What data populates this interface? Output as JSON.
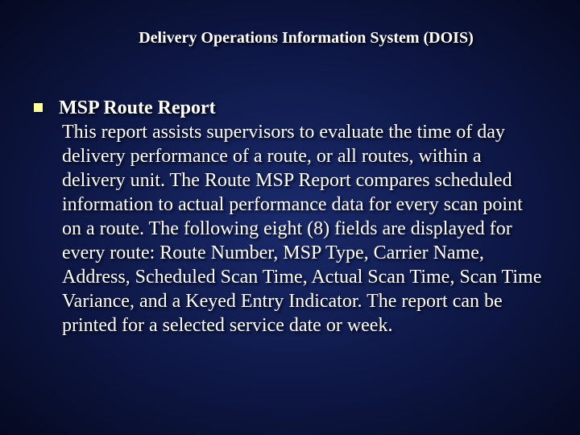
{
  "slide": {
    "title": "Delivery Operations Information System (DOIS)",
    "bullet_heading": "MSP Route Report",
    "bullet_body": "This report assists supervisors to evaluate the time of day delivery performance of a route, or all routes, within a delivery unit.  The Route MSP Report compares scheduled information to actual performance data for every scan point on a route.  The following eight (8) fields are displayed for every route: Route Number, MSP Type, Carrier Name, Address, Scheduled Scan Time, Actual Scan Time, Scan Time Variance, and a Keyed Entry Indicator.  The report can be printed for a selected service date or week."
  },
  "colors": {
    "background_center": "#1a2a6c",
    "background_mid": "#0d1642",
    "background_edge": "#050920",
    "text": "#ffffff",
    "bullet": "#ffff99"
  },
  "typography": {
    "title_fontsize": 20,
    "body_fontsize": 24,
    "font_family": "Times New Roman"
  }
}
